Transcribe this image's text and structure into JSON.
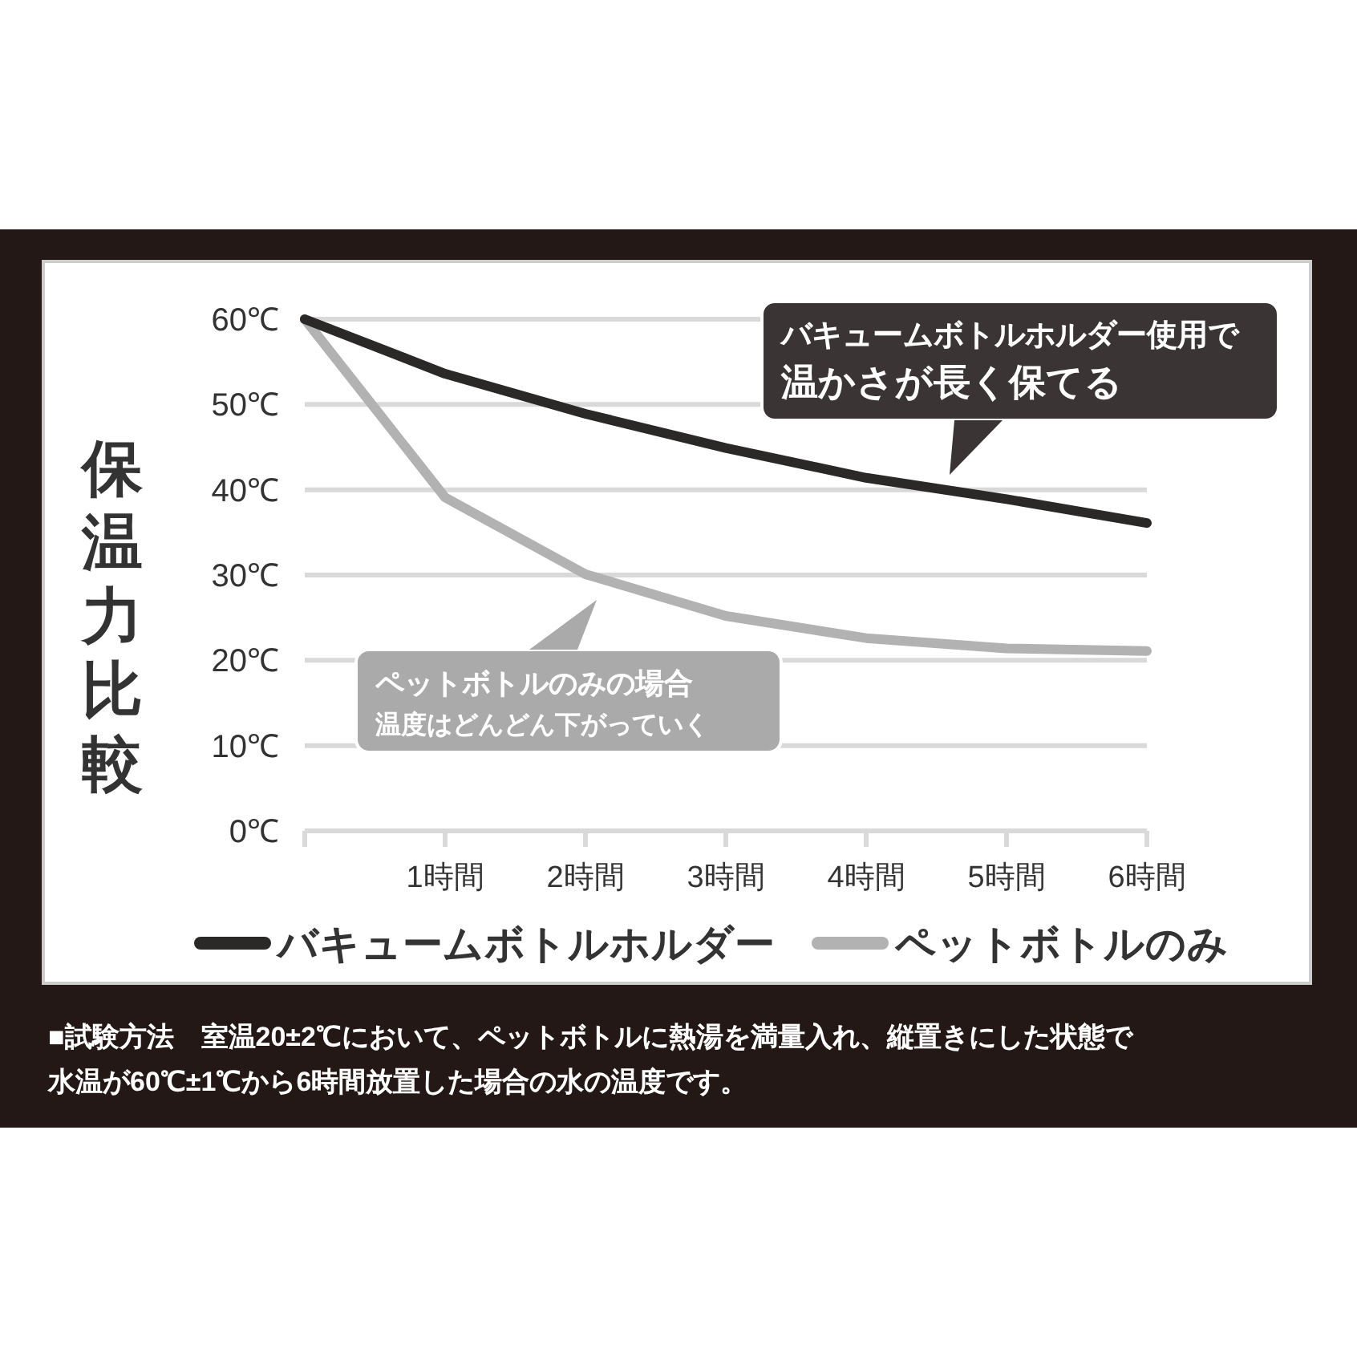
{
  "chart_data": {
    "type": "line",
    "ylabel": "保温力比較",
    "x": [
      0,
      1,
      2,
      3,
      4,
      5,
      6
    ],
    "series": [
      {
        "name": "バキュームボトルホルダー",
        "color": "#2b2828",
        "values": [
          60,
          53.6,
          48.9,
          44.9,
          41.4,
          38.9,
          36.1
        ]
      },
      {
        "name": "ペットボトルのみ",
        "color": "#b2b2b2",
        "values": [
          60,
          39.1,
          30.1,
          25.2,
          22.6,
          21.4,
          21.1
        ]
      }
    ],
    "xlim": [
      0,
      6
    ],
    "xticks": [
      {
        "value": 0,
        "label": null
      },
      {
        "value": 1,
        "label": "1時間"
      },
      {
        "value": 2,
        "label": "2時間"
      },
      {
        "value": 3,
        "label": "3時間"
      },
      {
        "value": 4,
        "label": "4時間"
      },
      {
        "value": 5,
        "label": "5時間"
      },
      {
        "value": 6,
        "label": "6時間"
      }
    ],
    "ylim": [
      0,
      60
    ],
    "yticks": [
      {
        "value": 0,
        "label": "0℃"
      },
      {
        "value": 10,
        "label": "10℃"
      },
      {
        "value": 20,
        "label": "20℃"
      },
      {
        "value": 30,
        "label": "30℃"
      },
      {
        "value": 40,
        "label": "40℃"
      },
      {
        "value": 50,
        "label": "50℃"
      },
      {
        "value": 60,
        "label": "60℃"
      }
    ],
    "grid": "y",
    "legend": "bottom",
    "marker": "none",
    "line_style": "solid",
    "annotations": [
      "バキュームボトルホルダー使用で",
      "温かさが長く保てる",
      "ペットボトルのみの場合",
      "温度はどんどん下がっていく",
      "■試験方法　室温20±2℃において、ペットボトルに熱湯を満量入れ、縦置きにした状態で",
      "水温が60℃±1℃から6時間放置した場合の水の温度です。"
    ]
  }
}
